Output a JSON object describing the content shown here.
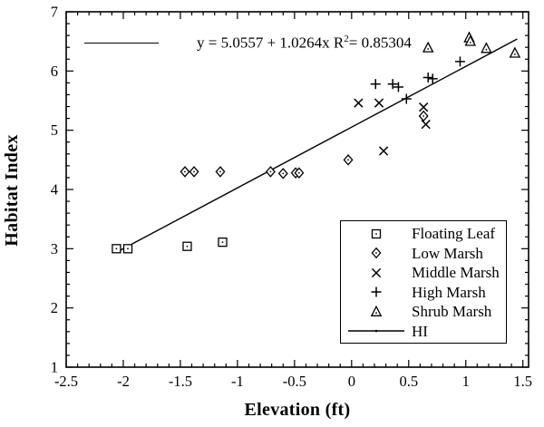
{
  "page": {
    "background": "#ffffff",
    "foreground": "#000000"
  },
  "chart_data": {
    "type": "scatter",
    "title": "",
    "xlabel": "Elevation (ft)",
    "ylabel": "Habitat Index",
    "xlim": [
      -2.5,
      1.55
    ],
    "ylim": [
      1,
      7
    ],
    "grid": false,
    "x_ticks": {
      "values": [
        -2.5,
        -2,
        -1.5,
        -1,
        -0.5,
        0,
        0.5,
        1,
        1.5
      ],
      "labels": [
        "-2.5",
        "-2",
        "-1.5",
        "-1",
        "-0.5",
        "0",
        "0.5",
        "1",
        "1.5"
      ],
      "minor_step": 0.1
    },
    "y_ticks": {
      "values": [
        1,
        2,
        3,
        4,
        5,
        6,
        7
      ],
      "labels": [
        "1",
        "2",
        "3",
        "4",
        "5",
        "6",
        "7"
      ],
      "minor_step": 0.2
    },
    "equation_label": {
      "prefix": "y = 5.0557 + 1.0264x R",
      "sup": "2",
      "suffix": "= 0.85304"
    },
    "fit_line": {
      "name": "HI",
      "endpoints": [
        [
          -2.02,
          2.98
        ],
        [
          1.45,
          6.54
        ]
      ]
    },
    "series": [
      {
        "name": "Floating Leaf",
        "marker": "square",
        "points": [
          [
            -2.06,
            3.0
          ],
          [
            -1.96,
            3.0
          ],
          [
            -1.44,
            3.04
          ],
          [
            -1.13,
            3.11
          ]
        ]
      },
      {
        "name": "Low Marsh",
        "marker": "diamond",
        "points": [
          [
            -1.46,
            4.3
          ],
          [
            -1.38,
            4.3
          ],
          [
            -1.15,
            4.3
          ],
          [
            -0.71,
            4.3
          ],
          [
            -0.6,
            4.27
          ],
          [
            -0.49,
            4.28
          ],
          [
            -0.46,
            4.28
          ],
          [
            -0.03,
            4.5
          ],
          [
            0.63,
            5.24
          ]
        ]
      },
      {
        "name": "Middle Marsh",
        "marker": "x",
        "points": [
          [
            0.06,
            5.46
          ],
          [
            0.24,
            5.46
          ],
          [
            0.28,
            4.65
          ],
          [
            0.63,
            5.39
          ],
          [
            0.65,
            5.1
          ]
        ]
      },
      {
        "name": "High Marsh",
        "marker": "plus",
        "points": [
          [
            0.21,
            5.78
          ],
          [
            0.36,
            5.78
          ],
          [
            0.41,
            5.73
          ],
          [
            0.48,
            5.53
          ],
          [
            0.67,
            5.89
          ],
          [
            0.71,
            5.87
          ],
          [
            0.95,
            6.16
          ]
        ]
      },
      {
        "name": "Shrub Marsh",
        "marker": "triangle",
        "points": [
          [
            0.67,
            6.39
          ],
          [
            1.03,
            6.56
          ],
          [
            1.04,
            6.5
          ],
          [
            1.18,
            6.38
          ],
          [
            1.43,
            6.3
          ]
        ]
      }
    ],
    "legend_position": "lower-right"
  },
  "legend": {
    "items": [
      {
        "label": "Floating Leaf",
        "marker": "square"
      },
      {
        "label": "Low Marsh",
        "marker": "diamond"
      },
      {
        "label": "Middle Marsh",
        "marker": "x"
      },
      {
        "label": "High Marsh",
        "marker": "plus"
      },
      {
        "label": "Shrub Marsh",
        "marker": "triangle"
      },
      {
        "label": "HI",
        "marker": "line"
      }
    ]
  }
}
